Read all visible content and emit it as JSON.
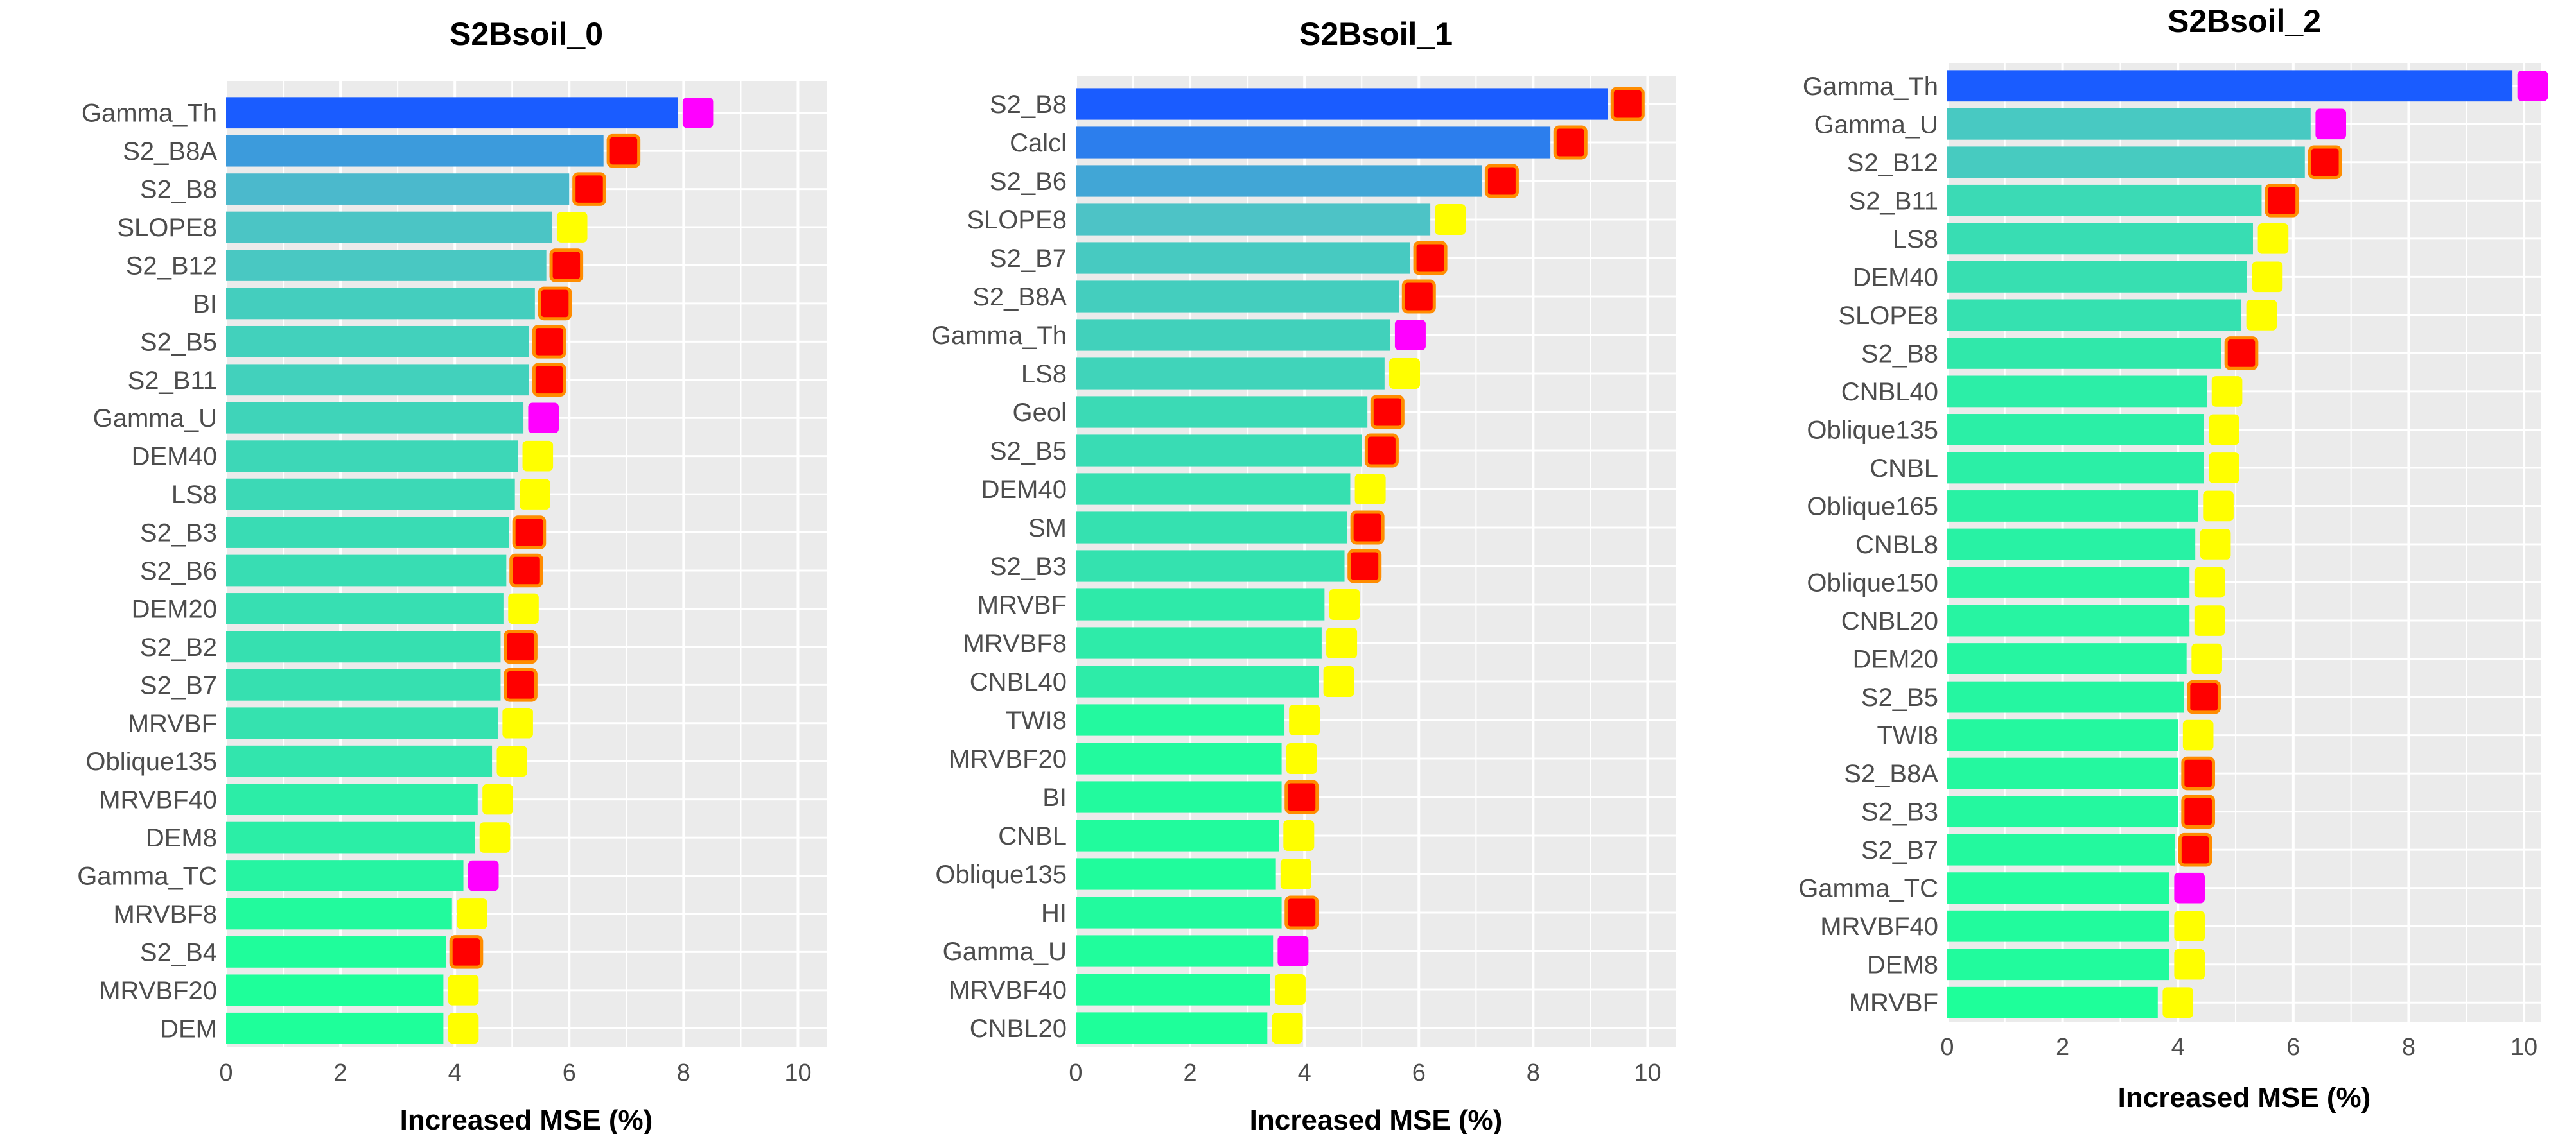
{
  "colors": {
    "panel_bg": "#EBEBEB",
    "grid": "#FFFFFF",
    "bar_top": "#1A5CFF",
    "bar_mid": "#4FC0C8",
    "bar_bottom": "#1EFF9A",
    "marker_magenta": "#FF00FF",
    "marker_red": "#FF0000",
    "marker_red_edge": "#FF8C00",
    "marker_yellow": "#FFFF00",
    "label_text": "#4D4D4D",
    "title_text": "#000000"
  },
  "chart_data": [
    {
      "type": "bar",
      "orientation": "horizontal",
      "title": "S2Bsoil_0",
      "xlabel": "Increased MSE (%)",
      "ylabel": "",
      "xlim": [
        0,
        10.5
      ],
      "xticks": [
        0,
        2,
        4,
        6,
        8,
        10
      ],
      "grid": true,
      "categories": [
        "Gamma_Th",
        "S2_B8A",
        "S2_B8",
        "SLOPE8",
        "S2_B12",
        "BI",
        "S2_B5",
        "S2_B11",
        "Gamma_U",
        "DEM40",
        "LS8",
        "S2_B3",
        "S2_B6",
        "DEM20",
        "S2_B2",
        "S2_B7",
        "MRVBF",
        "Oblique135",
        "MRVBF40",
        "DEM8",
        "Gamma_TC",
        "MRVBF8",
        "S2_B4",
        "MRVBF20",
        "DEM"
      ],
      "values": [
        7.9,
        6.6,
        6.0,
        5.7,
        5.6,
        5.4,
        5.3,
        5.3,
        5.2,
        5.1,
        5.05,
        4.95,
        4.9,
        4.85,
        4.8,
        4.8,
        4.75,
        4.65,
        4.4,
        4.35,
        4.15,
        3.95,
        3.85,
        3.8,
        3.8
      ],
      "markers": [
        "magenta",
        "red",
        "red",
        "yellow",
        "red",
        "red",
        "red",
        "red",
        "magenta",
        "yellow",
        "yellow",
        "red",
        "red",
        "yellow",
        "red",
        "red",
        "yellow",
        "yellow",
        "yellow",
        "yellow",
        "magenta",
        "yellow",
        "red",
        "yellow",
        "yellow"
      ]
    },
    {
      "type": "bar",
      "orientation": "horizontal",
      "title": "S2Bsoil_1",
      "xlabel": "Increased MSE (%)",
      "ylabel": "",
      "xlim": [
        0,
        10.5
      ],
      "xticks": [
        0,
        2,
        4,
        6,
        8,
        10
      ],
      "grid": true,
      "categories": [
        "S2_B8",
        "Calcl",
        "S2_B6",
        "SLOPE8",
        "S2_B7",
        "S2_B8A",
        "Gamma_Th",
        "LS8",
        "Geol",
        "S2_B5",
        "DEM40",
        "SM",
        "S2_B3",
        "MRVBF",
        "MRVBF8",
        "CNBL40",
        "TWI8",
        "MRVBF20",
        "BI",
        "CNBL",
        "Oblique135",
        "HI",
        "Gamma_U",
        "MRVBF40",
        "CNBL20"
      ],
      "values": [
        9.3,
        8.3,
        7.1,
        6.2,
        5.85,
        5.65,
        5.5,
        5.4,
        5.1,
        5.0,
        4.8,
        4.75,
        4.7,
        4.35,
        4.3,
        4.25,
        3.65,
        3.6,
        3.6,
        3.55,
        3.5,
        3.6,
        3.45,
        3.4,
        3.35
      ],
      "markers": [
        "red",
        "red",
        "red",
        "yellow",
        "red",
        "red",
        "magenta",
        "yellow",
        "red",
        "red",
        "yellow",
        "red",
        "red",
        "yellow",
        "yellow",
        "yellow",
        "yellow",
        "yellow",
        "red",
        "yellow",
        "yellow",
        "red",
        "magenta",
        "yellow",
        "yellow"
      ]
    },
    {
      "type": "bar",
      "orientation": "horizontal",
      "title": "S2Bsoil_2",
      "xlabel": "Increased MSE (%)",
      "ylabel": "",
      "xlim": [
        0,
        10.3
      ],
      "xticks": [
        0,
        2,
        4,
        6,
        8,
        10
      ],
      "grid": true,
      "categories": [
        "Gamma_Th",
        "Gamma_U",
        "S2_B12",
        "S2_B11",
        "LS8",
        "DEM40",
        "SLOPE8",
        "S2_B8",
        "CNBL40",
        "Oblique135",
        "CNBL",
        "Oblique165",
        "CNBL8",
        "Oblique150",
        "CNBL20",
        "DEM20",
        "S2_B5",
        "TWI8",
        "S2_B8A",
        "S2_B3",
        "S2_B7",
        "Gamma_TC",
        "MRVBF40",
        "DEM8",
        "MRVBF"
      ],
      "values": [
        9.8,
        6.3,
        6.2,
        5.45,
        5.3,
        5.2,
        5.1,
        4.75,
        4.5,
        4.45,
        4.45,
        4.35,
        4.3,
        4.2,
        4.2,
        4.15,
        4.1,
        4.0,
        4.0,
        4.0,
        3.95,
        3.85,
        3.85,
        3.85,
        3.65
      ],
      "markers": [
        "magenta",
        "magenta",
        "red",
        "red",
        "yellow",
        "yellow",
        "yellow",
        "red",
        "yellow",
        "yellow",
        "yellow",
        "yellow",
        "yellow",
        "yellow",
        "yellow",
        "yellow",
        "red",
        "yellow",
        "red",
        "red",
        "red",
        "magenta",
        "yellow",
        "yellow",
        "yellow"
      ]
    }
  ]
}
